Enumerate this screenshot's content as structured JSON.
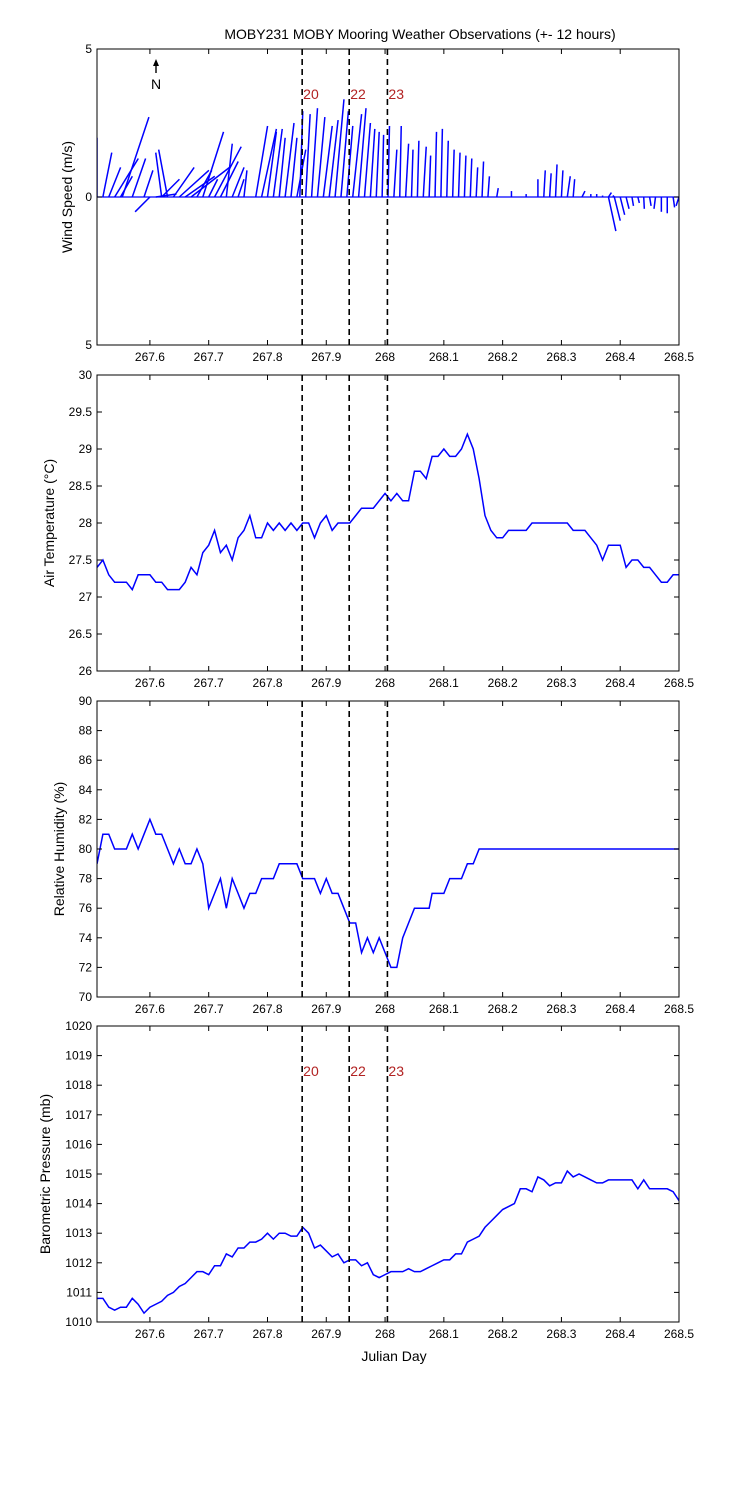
{
  "title": "MOBY231 MOBY Mooring Weather Observations (+- 12 hours)",
  "north_label": "N",
  "xlabel": "Julian Day",
  "colors": {
    "line": "#0000ff",
    "bin": "#b22222",
    "axis": "#000000"
  },
  "bin_lines": {
    "x": [
      267.859,
      267.939,
      268.004
    ],
    "labels": [
      "20",
      "22",
      "23"
    ]
  },
  "chart_data": [
    {
      "type": "quiver",
      "ylabel": "Wind Speed (m/s)",
      "xlim": [
        267.51,
        268.5
      ],
      "ylim": [
        -5,
        5
      ],
      "yticks": [
        5,
        0,
        5
      ],
      "ytick_values": [
        5,
        0,
        -5
      ],
      "xticks": [
        "267.6",
        "267.7",
        "267.8",
        "267.9",
        "268",
        "268.1",
        "268.2",
        "268.3",
        "268.4",
        "268.5"
      ],
      "grid": false,
      "show_bin_labels": true,
      "vectors": [
        {
          "x": 267.51,
          "u": 0.0,
          "v": 2.0
        },
        {
          "x": 267.52,
          "u": 0.3,
          "v": 1.5
        },
        {
          "x": 267.53,
          "u": 0.4,
          "v": 1.0
        },
        {
          "x": 267.54,
          "u": 0.8,
          "v": 1.3
        },
        {
          "x": 267.55,
          "u": 0.4,
          "v": 0.7
        },
        {
          "x": 267.553,
          "u": 0.9,
          "v": 2.7
        },
        {
          "x": 267.57,
          "u": 0.45,
          "v": 1.3
        },
        {
          "x": 267.59,
          "u": 0.3,
          "v": 0.9
        },
        {
          "x": 267.6,
          "u": -0.5,
          "v": -0.5
        },
        {
          "x": 267.61,
          "u": 0.7,
          "v": 0.1
        },
        {
          "x": 267.62,
          "u": 0.6,
          "v": 0.6
        },
        {
          "x": 267.62,
          "u": -0.2,
          "v": 1.5
        },
        {
          "x": 267.63,
          "u": -0.3,
          "v": 1.6
        },
        {
          "x": 267.64,
          "u": 0.7,
          "v": 1.0
        },
        {
          "x": 267.65,
          "u": 1.0,
          "v": 0.9
        },
        {
          "x": 267.66,
          "u": 1.0,
          "v": 0.7
        },
        {
          "x": 267.67,
          "u": 1.3,
          "v": 1.0
        },
        {
          "x": 267.68,
          "u": 0.5,
          "v": 0.9
        },
        {
          "x": 267.69,
          "u": 0.7,
          "v": 2.2
        },
        {
          "x": 267.7,
          "u": 0.3,
          "v": 0.6
        },
        {
          "x": 267.71,
          "u": 0.9,
          "v": 1.7
        },
        {
          "x": 267.72,
          "u": 0.6,
          "v": 1.2
        },
        {
          "x": 267.73,
          "u": 0.2,
          "v": 1.8
        },
        {
          "x": 267.74,
          "u": 0.4,
          "v": 1.0
        },
        {
          "x": 267.75,
          "u": 0.2,
          "v": 0.6
        },
        {
          "x": 267.76,
          "u": 0.1,
          "v": 0.9
        },
        {
          "x": 267.78,
          "u": 0.4,
          "v": 2.4
        },
        {
          "x": 267.79,
          "u": 0.5,
          "v": 2.3
        },
        {
          "x": 267.8,
          "u": 0.3,
          "v": 2.2
        },
        {
          "x": 267.81,
          "u": 0.3,
          "v": 2.3
        },
        {
          "x": 267.82,
          "u": 0.2,
          "v": 2.0
        },
        {
          "x": 267.83,
          "u": 0.3,
          "v": 2.5
        },
        {
          "x": 267.84,
          "u": 0.2,
          "v": 2.0
        },
        {
          "x": 267.85,
          "u": 0.3,
          "v": 1.6
        },
        {
          "x": 267.855,
          "u": 0.1,
          "v": 2.9
        },
        {
          "x": 267.865,
          "u": 0.15,
          "v": 2.8
        },
        {
          "x": 267.875,
          "u": 0.2,
          "v": 3.0
        },
        {
          "x": 267.885,
          "u": 0.25,
          "v": 2.7
        },
        {
          "x": 267.895,
          "u": 0.3,
          "v": 2.4
        },
        {
          "x": 267.905,
          "u": 0.3,
          "v": 2.6
        },
        {
          "x": 267.915,
          "u": 0.3,
          "v": 3.3
        },
        {
          "x": 267.925,
          "u": 0.25,
          "v": 2.9
        },
        {
          "x": 267.935,
          "u": 0.2,
          "v": 2.4
        },
        {
          "x": 267.945,
          "u": 0.3,
          "v": 2.8
        },
        {
          "x": 267.955,
          "u": 0.25,
          "v": 3.0
        },
        {
          "x": 267.965,
          "u": 0.2,
          "v": 2.5
        },
        {
          "x": 267.975,
          "u": 0.15,
          "v": 2.3
        },
        {
          "x": 267.985,
          "u": 0.1,
          "v": 2.2
        },
        {
          "x": 267.995,
          "u": 0.05,
          "v": 2.1
        },
        {
          "x": 268.005,
          "u": 0.05,
          "v": 2.4
        },
        {
          "x": 268.015,
          "u": 0.1,
          "v": 1.6
        },
        {
          "x": 268.025,
          "u": 0.05,
          "v": 2.4
        },
        {
          "x": 268.035,
          "u": 0.1,
          "v": 1.8
        },
        {
          "x": 268.045,
          "u": 0.05,
          "v": 1.6
        },
        {
          "x": 268.055,
          "u": 0.05,
          "v": 1.9
        },
        {
          "x": 268.065,
          "u": 0.1,
          "v": 1.7
        },
        {
          "x": 268.075,
          "u": 0.05,
          "v": 1.4
        },
        {
          "x": 268.085,
          "u": 0.05,
          "v": 2.2
        },
        {
          "x": 268.095,
          "u": 0.05,
          "v": 2.3
        },
        {
          "x": 268.105,
          "u": 0.05,
          "v": 1.9
        },
        {
          "x": 268.115,
          "u": 0.05,
          "v": 1.6
        },
        {
          "x": 268.125,
          "u": 0.05,
          "v": 1.5
        },
        {
          "x": 268.135,
          "u": 0.05,
          "v": 1.4
        },
        {
          "x": 268.145,
          "u": 0.05,
          "v": 1.3
        },
        {
          "x": 268.155,
          "u": 0.05,
          "v": 1.0
        },
        {
          "x": 268.165,
          "u": 0.05,
          "v": 1.2
        },
        {
          "x": 268.175,
          "u": 0.05,
          "v": 0.7
        },
        {
          "x": 268.19,
          "u": 0.05,
          "v": 0.3
        },
        {
          "x": 268.215,
          "u": 0.0,
          "v": 0.2
        },
        {
          "x": 268.24,
          "u": 0.0,
          "v": 0.1
        },
        {
          "x": 268.26,
          "u": 0.0,
          "v": 0.6
        },
        {
          "x": 268.27,
          "u": 0.05,
          "v": 0.9
        },
        {
          "x": 268.28,
          "u": 0.05,
          "v": 0.8
        },
        {
          "x": 268.29,
          "u": 0.05,
          "v": 1.1
        },
        {
          "x": 268.3,
          "u": 0.05,
          "v": 0.9
        },
        {
          "x": 268.31,
          "u": 0.1,
          "v": 0.7
        },
        {
          "x": 268.32,
          "u": 0.05,
          "v": 0.6
        },
        {
          "x": 268.335,
          "u": 0.1,
          "v": 0.2
        },
        {
          "x": 268.35,
          "u": 0.0,
          "v": 0.1
        },
        {
          "x": 268.36,
          "u": 0.0,
          "v": 0.1
        },
        {
          "x": 268.37,
          "u": 0.0,
          "v": 0.05
        },
        {
          "x": 268.38,
          "u": 0.1,
          "v": 0.15
        },
        {
          "x": 268.39,
          "u": -0.05,
          "v": 0.05
        },
        {
          "x": 268.38,
          "u": 0.25,
          "v": -1.15
        },
        {
          "x": 268.39,
          "u": 0.2,
          "v": -0.8
        },
        {
          "x": 268.4,
          "u": 0.15,
          "v": -0.6
        },
        {
          "x": 268.41,
          "u": 0.1,
          "v": -0.4
        },
        {
          "x": 268.42,
          "u": 0.05,
          "v": -0.3
        },
        {
          "x": 268.43,
          "u": 0.05,
          "v": -0.2
        },
        {
          "x": 268.44,
          "u": 0.02,
          "v": -0.4
        },
        {
          "x": 268.45,
          "u": 0.05,
          "v": -0.3
        },
        {
          "x": 268.46,
          "u": -0.05,
          "v": -0.4
        },
        {
          "x": 268.47,
          "u": 0.0,
          "v": -0.5
        },
        {
          "x": 268.48,
          "u": 0.0,
          "v": -0.55
        },
        {
          "x": 268.49,
          "u": 0.05,
          "v": -0.35
        },
        {
          "x": 268.5,
          "u": -0.1,
          "v": -0.3
        }
      ]
    },
    {
      "type": "line",
      "ylabel": "Air Temperature (°C)",
      "xlim": [
        267.51,
        268.5
      ],
      "ylim": [
        26,
        30
      ],
      "yticks": [
        "30",
        "29.5",
        "29",
        "28.5",
        "28",
        "27.5",
        "27",
        "26.5",
        "26"
      ],
      "ytick_values": [
        30,
        29.5,
        29,
        28.5,
        28,
        27.5,
        27,
        26.5,
        26
      ],
      "xticks": [
        "267.6",
        "267.7",
        "267.8",
        "267.9",
        "268",
        "268.1",
        "268.2",
        "268.3",
        "268.4",
        "268.5"
      ],
      "grid": false,
      "show_bin_labels": false,
      "x": [
        267.51,
        267.52,
        267.53,
        267.54,
        267.55,
        267.56,
        267.57,
        267.58,
        267.59,
        267.6,
        267.61,
        267.62,
        267.63,
        267.64,
        267.65,
        267.66,
        267.67,
        267.68,
        267.69,
        267.7,
        267.71,
        267.72,
        267.73,
        267.74,
        267.75,
        267.76,
        267.77,
        267.78,
        267.79,
        267.8,
        267.81,
        267.82,
        267.83,
        267.84,
        267.85,
        267.86,
        267.87,
        267.88,
        267.89,
        267.9,
        267.91,
        267.92,
        267.93,
        267.94,
        267.95,
        267.96,
        267.97,
        267.98,
        267.99,
        268.0,
        268.01,
        268.02,
        268.03,
        268.04,
        268.05,
        268.06,
        268.07,
        268.08,
        268.09,
        268.1,
        268.11,
        268.12,
        268.13,
        268.14,
        268.15,
        268.16,
        268.17,
        268.18,
        268.19,
        268.2,
        268.21,
        268.22,
        268.23,
        268.24,
        268.25,
        268.26,
        268.27,
        268.28,
        268.29,
        268.3,
        268.31,
        268.32,
        268.33,
        268.34,
        268.35,
        268.36,
        268.37,
        268.38,
        268.39,
        268.4,
        268.41,
        268.42,
        268.43,
        268.44,
        268.45,
        268.46,
        268.47,
        268.48,
        268.49,
        268.5
      ],
      "y": [
        27.4,
        27.5,
        27.3,
        27.2,
        27.2,
        27.2,
        27.1,
        27.3,
        27.3,
        27.3,
        27.2,
        27.2,
        27.1,
        27.1,
        27.1,
        27.2,
        27.4,
        27.3,
        27.6,
        27.7,
        27.9,
        27.6,
        27.7,
        27.5,
        27.8,
        27.9,
        28.1,
        27.8,
        27.8,
        28.0,
        27.9,
        28.0,
        27.9,
        28.0,
        27.9,
        28.0,
        28.0,
        27.8,
        28.0,
        28.1,
        27.9,
        28.0,
        28.0,
        28.0,
        28.1,
        28.2,
        28.2,
        28.2,
        28.3,
        28.4,
        28.3,
        28.4,
        28.3,
        28.3,
        28.7,
        28.7,
        28.6,
        28.9,
        28.9,
        29.0,
        28.9,
        28.9,
        29.0,
        29.2,
        29.0,
        28.6,
        28.1,
        27.9,
        27.8,
        27.8,
        27.9,
        27.9,
        27.9,
        27.9,
        28.0,
        28.0,
        28.0,
        28.0,
        28.0,
        28.0,
        28.0,
        27.9,
        27.9,
        27.9,
        27.8,
        27.7,
        27.5,
        27.7,
        27.7,
        27.7,
        27.4,
        27.5,
        27.5,
        27.4,
        27.4,
        27.3,
        27.2,
        27.2,
        27.3,
        27.3
      ]
    },
    {
      "type": "line",
      "ylabel": "Relative Humidity (%)",
      "xlim": [
        267.51,
        268.5
      ],
      "ylim": [
        70,
        90
      ],
      "yticks": [
        "90",
        "88",
        "86",
        "84",
        "82",
        "80",
        "78",
        "76",
        "74",
        "72",
        "70"
      ],
      "ytick_values": [
        90,
        88,
        86,
        84,
        82,
        80,
        78,
        76,
        74,
        72,
        70
      ],
      "xticks": [
        "267.6",
        "267.7",
        "267.8",
        "267.9",
        "268",
        "268.1",
        "268.2",
        "268.3",
        "268.4",
        "268.5"
      ],
      "grid": false,
      "show_bin_labels": false,
      "x": [
        267.51,
        267.52,
        267.53,
        267.54,
        267.55,
        267.56,
        267.57,
        267.58,
        267.59,
        267.6,
        267.61,
        267.62,
        267.63,
        267.64,
        267.65,
        267.66,
        267.67,
        267.68,
        267.69,
        267.7,
        267.71,
        267.72,
        267.73,
        267.74,
        267.75,
        267.76,
        267.77,
        267.78,
        267.79,
        267.8,
        267.81,
        267.82,
        267.83,
        267.84,
        267.85,
        267.86,
        267.87,
        267.88,
        267.89,
        267.9,
        267.91,
        267.92,
        267.93,
        267.94,
        267.95,
        267.96,
        267.97,
        267.98,
        267.99,
        268.0,
        268.01,
        268.02,
        268.03,
        268.04,
        268.05,
        268.06,
        268.07,
        268.075,
        268.08,
        268.09,
        268.1,
        268.11,
        268.12,
        268.13,
        268.14,
        268.15,
        268.16,
        268.17,
        268.18,
        268.19,
        268.2,
        268.25,
        268.26,
        268.29,
        268.3,
        268.33,
        268.34,
        268.36,
        268.37,
        268.39,
        268.5
      ],
      "y": [
        79,
        81,
        81,
        80,
        80,
        80,
        81,
        80,
        81,
        82,
        81,
        81,
        80,
        79,
        80,
        79,
        79,
        80,
        79,
        76,
        77,
        78,
        76,
        78,
        77,
        76,
        77,
        77,
        78,
        78,
        78,
        79,
        79,
        79,
        79,
        78,
        78,
        78,
        77,
        78,
        77,
        77,
        76,
        75,
        75,
        73,
        74,
        73,
        74,
        73,
        72,
        72,
        74,
        75,
        76,
        76,
        76,
        76,
        77,
        77,
        77,
        78,
        78,
        78,
        79,
        79,
        80,
        80,
        80,
        80,
        80,
        80,
        80,
        80,
        80,
        80,
        80,
        80,
        80,
        80,
        80
      ]
    },
    {
      "type": "line",
      "ylabel": "Barometric Pressure (mb)",
      "xlim": [
        267.51,
        268.5
      ],
      "ylim": [
        1010,
        1020
      ],
      "yticks": [
        "1020",
        "1019",
        "1018",
        "1017",
        "1016",
        "1015",
        "1014",
        "1013",
        "1012",
        "1011",
        "1010"
      ],
      "ytick_values": [
        1020,
        1019,
        1018,
        1017,
        1016,
        1015,
        1014,
        1013,
        1012,
        1011,
        1010
      ],
      "xticks": [
        "267.6",
        "267.7",
        "267.8",
        "267.9",
        "268",
        "268.1",
        "268.2",
        "268.3",
        "268.4",
        "268.5"
      ],
      "grid": false,
      "show_bin_labels": true,
      "x": [
        267.51,
        267.52,
        267.53,
        267.54,
        267.55,
        267.56,
        267.57,
        267.58,
        267.59,
        267.6,
        267.61,
        267.62,
        267.63,
        267.64,
        267.65,
        267.66,
        267.67,
        267.68,
        267.69,
        267.7,
        267.71,
        267.72,
        267.73,
        267.74,
        267.75,
        267.76,
        267.77,
        267.78,
        267.79,
        267.8,
        267.81,
        267.82,
        267.83,
        267.84,
        267.85,
        267.86,
        267.87,
        267.88,
        267.89,
        267.9,
        267.91,
        267.92,
        267.93,
        267.94,
        267.95,
        267.96,
        267.97,
        267.98,
        267.99,
        268.0,
        268.01,
        268.02,
        268.03,
        268.04,
        268.05,
        268.06,
        268.07,
        268.08,
        268.09,
        268.1,
        268.11,
        268.12,
        268.13,
        268.14,
        268.15,
        268.16,
        268.17,
        268.18,
        268.19,
        268.2,
        268.21,
        268.22,
        268.23,
        268.24,
        268.25,
        268.26,
        268.27,
        268.28,
        268.29,
        268.3,
        268.31,
        268.32,
        268.33,
        268.34,
        268.35,
        268.36,
        268.37,
        268.38,
        268.39,
        268.4,
        268.41,
        268.42,
        268.43,
        268.44,
        268.45,
        268.46,
        268.47,
        268.48,
        268.49,
        268.5
      ],
      "y": [
        1010.8,
        1010.8,
        1010.5,
        1010.4,
        1010.5,
        1010.5,
        1010.8,
        1010.6,
        1010.3,
        1010.5,
        1010.6,
        1010.7,
        1010.9,
        1011.0,
        1011.2,
        1011.3,
        1011.5,
        1011.7,
        1011.7,
        1011.6,
        1011.9,
        1011.9,
        1012.3,
        1012.2,
        1012.5,
        1012.5,
        1012.7,
        1012.7,
        1012.8,
        1013.0,
        1012.8,
        1013.0,
        1013.0,
        1012.9,
        1012.9,
        1013.2,
        1013.0,
        1012.5,
        1012.6,
        1012.4,
        1012.2,
        1012.3,
        1012.0,
        1012.1,
        1012.1,
        1011.9,
        1012.0,
        1011.6,
        1011.5,
        1011.6,
        1011.7,
        1011.7,
        1011.7,
        1011.8,
        1011.7,
        1011.7,
        1011.8,
        1011.9,
        1012.0,
        1012.1,
        1012.1,
        1012.3,
        1012.3,
        1012.7,
        1012.8,
        1012.9,
        1013.2,
        1013.4,
        1013.6,
        1013.8,
        1013.9,
        1014.0,
        1014.5,
        1014.5,
        1014.4,
        1014.9,
        1014.8,
        1014.6,
        1014.7,
        1014.7,
        1015.1,
        1014.9,
        1015.0,
        1014.9,
        1014.8,
        1014.7,
        1014.7,
        1014.8,
        1014.8,
        1014.8,
        1014.8,
        1014.8,
        1014.5,
        1014.8,
        1014.5,
        1014.5,
        1014.5,
        1014.5,
        1014.4,
        1014.1
      ]
    }
  ]
}
